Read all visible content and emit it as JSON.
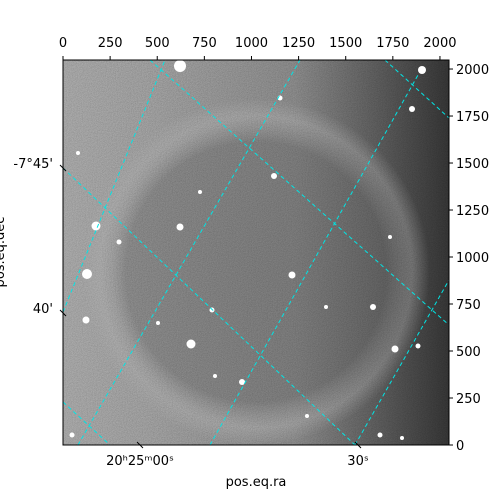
{
  "chart_data": {
    "type": "image",
    "xlabel": "pos.eq.ra",
    "ylabel": "pos.eq.dec",
    "xlim": [
      0,
      2048
    ],
    "xticks": [
      0,
      250,
      500,
      750,
      1000,
      1250,
      1500,
      1750,
      2000
    ],
    "ylim": [
      0,
      2048
    ],
    "yticks": [
      0,
      250,
      500,
      750,
      1000,
      1250,
      1500,
      1750,
      2000
    ],
    "ra_ticks": [
      "20ʰ25ᵐ00ˢ",
      "30ˢ"
    ],
    "dec_ticks": [
      "-7°45'",
      "40'"
    ],
    "grid_color": "#00e5e5"
  }
}
